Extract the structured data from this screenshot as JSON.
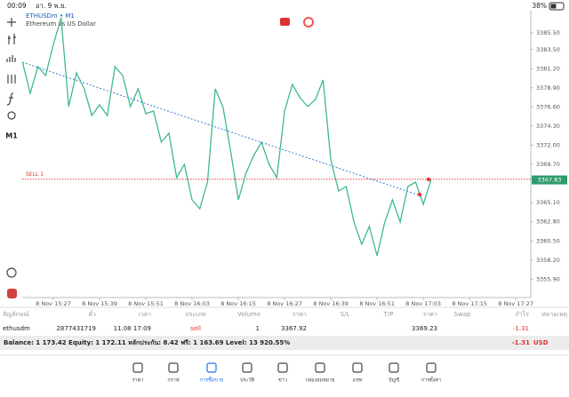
{
  "status_bar": {
    "time": "00:09",
    "date": "อา. 9 พ.ย.",
    "battery": "38%"
  },
  "toolbar_timeframe": "M1",
  "chart_data": {
    "type": "line",
    "title": "ETHUSDm • M1",
    "subtitle": "Ethereum vs US Dollar",
    "sell_label": "SELL 1",
    "last_price": 3367.83,
    "categories": [
      null,
      null,
      null,
      null,
      "8 Nov 15:27",
      null,
      null,
      null,
      null,
      null,
      "8 Nov 15:39",
      null,
      null,
      null,
      null,
      null,
      "8 Nov 15:51",
      null,
      null,
      null,
      null,
      null,
      "8 Nov 16:03",
      null,
      null,
      null,
      null,
      null,
      "8 Nov 16:15",
      null,
      null,
      null,
      null,
      null,
      "8 Nov 16:27",
      null,
      null,
      null,
      null,
      null,
      "8 Nov 16:39",
      null,
      null,
      null,
      null,
      null,
      "8 Nov 16:51",
      null,
      null,
      null,
      null,
      null,
      "8 Nov 17:03",
      null,
      null,
      null,
      null,
      null,
      "8 Nov 17:15",
      null,
      null,
      null,
      null,
      null,
      "8 Nov 17:27",
      null
    ],
    "series": [
      {
        "name": "ETHUSDm",
        "color": "#3fb98c",
        "values": [
          3381.98,
          3378.24,
          3381.44,
          3380.38,
          3384.11,
          3387.31,
          3376.64,
          3380.7,
          3378.78,
          3375.57,
          3376.86,
          3375.57,
          3381.44,
          3380.38,
          3376.64,
          3378.78,
          3375.79,
          3376.11,
          3372.37,
          3373.44,
          3368.1,
          3369.7,
          3365.44,
          3364.37,
          3367.57,
          3378.78,
          3376.64,
          3371.31,
          3365.44,
          3368.64,
          3370.77,
          3372.37,
          3369.7,
          3368.1,
          3376.11,
          3379.31,
          3377.71,
          3376.64,
          3377.5,
          3379.84,
          3370.24,
          3366.5,
          3367.04,
          3362.77,
          3360.1,
          3362.23,
          3358.71,
          3362.77,
          3365.44,
          3362.77,
          3367.04,
          3367.57,
          3364.9,
          3367.83,
          null,
          null,
          null,
          null,
          null,
          null,
          null,
          null,
          null,
          null,
          null,
          null
        ]
      }
    ],
    "ylim": [
      3354.23,
      3387.85
    ],
    "yticks": [
      {
        "value": 3385.5,
        "label": "3385.50"
      },
      {
        "value": 3383.5,
        "label": "3383.50"
      },
      {
        "value": 3381.2,
        "label": "3381.20"
      },
      {
        "value": 3378.9,
        "label": "3378.90"
      },
      {
        "value": 3376.6,
        "label": "3376.60"
      },
      {
        "value": 3374.3,
        "label": "3374.30"
      },
      {
        "value": 3372,
        "label": "3372.00"
      },
      {
        "value": 3369.7,
        "label": "3369.70"
      },
      {
        "value": 3365.1,
        "label": "3365.10"
      },
      {
        "value": 3362.8,
        "label": "3362.80"
      },
      {
        "value": 3360.5,
        "label": "3360.50"
      },
      {
        "value": 3358.2,
        "label": "3358.20"
      },
      {
        "value": 3355.9,
        "label": "3355.90"
      }
    ],
    "grid": false
  },
  "positions": {
    "header": [
      "สัญลักษณ์",
      "ตั๋ว",
      "เวลา",
      "ประเภท",
      "Volume",
      "ราคา",
      "S/L",
      "T/P",
      "ราคา",
      "Swap",
      "กำไร",
      "หมายเหตุ"
    ],
    "rows": [
      [
        "ethusdm",
        "2877431719",
        "11.08 17:09",
        "sell",
        "1",
        "3367.92",
        null,
        null,
        "3369.23",
        null,
        "-1.31",
        null
      ]
    ]
  },
  "balance": {
    "text": "Balance: 1 173.42 Equity: 1 172.11 หลักประกัน: 8.42 ฟรี: 1 163.69 Level: 13 920.55%",
    "profit": "-1.31",
    "currency": "USD"
  },
  "nav": [
    "ราคา",
    "กราฟ",
    "การซื้อขาย",
    "ประวัติ",
    "ข่าว",
    "กล่องจดหมาย",
    "แชท",
    "บัญชี",
    "การตั้งค่า"
  ]
}
